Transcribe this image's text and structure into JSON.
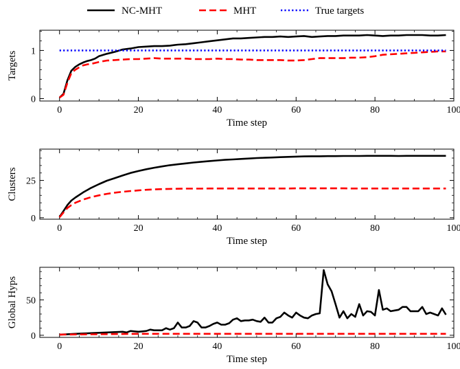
{
  "legend": [
    {
      "label": "NC-MHT",
      "color": "#000000",
      "dash": "solid"
    },
    {
      "label": "MHT",
      "color": "#ff0000",
      "dash": "dashed"
    },
    {
      "label": "True targets",
      "color": "#0000ff",
      "dash": "dotted"
    }
  ],
  "chart_data": [
    {
      "type": "line",
      "xlabel": "Time step",
      "ylabel": "Targets",
      "xlim": [
        -5,
        100
      ],
      "ylim": [
        -0.05,
        1.42
      ],
      "xticks": [
        0,
        20,
        40,
        60,
        80,
        100
      ],
      "yticks": [
        0,
        1
      ],
      "series": [
        {
          "name": "NC-MHT",
          "color": "#000000",
          "dash": "solid",
          "x": [
            0,
            1,
            2,
            3,
            4,
            5,
            6,
            7,
            8,
            9,
            10,
            12,
            14,
            16,
            18,
            20,
            22,
            24,
            26,
            28,
            30,
            32,
            34,
            36,
            38,
            40,
            42,
            44,
            46,
            48,
            50,
            52,
            54,
            56,
            58,
            60,
            62,
            64,
            66,
            68,
            70,
            72,
            74,
            76,
            78,
            80,
            82,
            84,
            86,
            88,
            90,
            92,
            94,
            96,
            98
          ],
          "y": [
            0.02,
            0.1,
            0.38,
            0.58,
            0.66,
            0.71,
            0.75,
            0.78,
            0.8,
            0.83,
            0.88,
            0.93,
            0.97,
            1.02,
            1.04,
            1.07,
            1.08,
            1.09,
            1.09,
            1.1,
            1.12,
            1.13,
            1.15,
            1.17,
            1.19,
            1.21,
            1.23,
            1.25,
            1.25,
            1.26,
            1.27,
            1.28,
            1.28,
            1.29,
            1.28,
            1.29,
            1.3,
            1.28,
            1.29,
            1.3,
            1.3,
            1.31,
            1.31,
            1.31,
            1.32,
            1.31,
            1.3,
            1.31,
            1.31,
            1.32,
            1.32,
            1.32,
            1.31,
            1.31,
            1.32
          ]
        },
        {
          "name": "MHT",
          "color": "#ff0000",
          "dash": "dashed",
          "x": [
            0,
            1,
            2,
            3,
            4,
            5,
            6,
            7,
            8,
            9,
            10,
            12,
            14,
            16,
            18,
            20,
            22,
            24,
            26,
            28,
            30,
            32,
            34,
            36,
            38,
            40,
            42,
            44,
            46,
            48,
            50,
            52,
            54,
            56,
            58,
            60,
            62,
            64,
            66,
            68,
            70,
            72,
            74,
            76,
            78,
            80,
            82,
            84,
            86,
            88,
            90,
            92,
            94,
            96,
            98
          ],
          "y": [
            0.02,
            0.08,
            0.33,
            0.53,
            0.6,
            0.65,
            0.69,
            0.71,
            0.72,
            0.74,
            0.76,
            0.79,
            0.8,
            0.81,
            0.82,
            0.82,
            0.83,
            0.84,
            0.83,
            0.83,
            0.83,
            0.83,
            0.82,
            0.82,
            0.82,
            0.83,
            0.82,
            0.82,
            0.81,
            0.81,
            0.8,
            0.8,
            0.8,
            0.8,
            0.79,
            0.79,
            0.8,
            0.82,
            0.84,
            0.84,
            0.84,
            0.84,
            0.85,
            0.85,
            0.86,
            0.88,
            0.91,
            0.92,
            0.93,
            0.94,
            0.95,
            0.96,
            0.97,
            0.98,
            0.98
          ]
        },
        {
          "name": "True targets",
          "color": "#0000ff",
          "dash": "dotted",
          "x": [
            0,
            98
          ],
          "y": [
            1,
            1
          ]
        }
      ]
    },
    {
      "type": "line",
      "xlabel": "Time step",
      "ylabel": "Clusters",
      "xlim": [
        -5,
        100
      ],
      "ylim": [
        -1,
        46
      ],
      "xticks": [
        0,
        20,
        40,
        60,
        80,
        100
      ],
      "yticks": [
        0,
        25
      ],
      "series": [
        {
          "name": "NC-MHT",
          "color": "#000000",
          "dash": "solid",
          "x": [
            0,
            1,
            2,
            3,
            4,
            6,
            8,
            10,
            12,
            14,
            16,
            18,
            20,
            22,
            24,
            26,
            28,
            30,
            32,
            34,
            36,
            38,
            40,
            42,
            44,
            46,
            48,
            50,
            52,
            54,
            56,
            58,
            60,
            62,
            64,
            66,
            68,
            70,
            72,
            74,
            76,
            78,
            80,
            82,
            84,
            86,
            88,
            90,
            92,
            94,
            96,
            98
          ],
          "y": [
            0.5,
            4.5,
            8.5,
            11.5,
            13.5,
            17,
            20,
            22.5,
            24.8,
            26.5,
            28.3,
            30,
            31.3,
            32.5,
            33.5,
            34.4,
            35.2,
            35.8,
            36.4,
            37,
            37.5,
            38,
            38.4,
            38.8,
            39.1,
            39.4,
            39.7,
            40,
            40.2,
            40.4,
            40.6,
            40.8,
            41,
            41.1,
            41.2,
            41.2,
            41.3,
            41.3,
            41.4,
            41.4,
            41.4,
            41.5,
            41.5,
            41.5,
            41.5,
            41.4,
            41.5,
            41.5,
            41.5,
            41.5,
            41.5,
            41.5
          ]
        },
        {
          "name": "MHT",
          "color": "#ff0000",
          "dash": "dashed",
          "x": [
            0,
            1,
            2,
            3,
            4,
            6,
            8,
            10,
            12,
            14,
            16,
            18,
            20,
            22,
            24,
            26,
            28,
            30,
            32,
            34,
            36,
            38,
            40,
            42,
            44,
            46,
            48,
            50,
            52,
            54,
            56,
            58,
            60,
            62,
            64,
            66,
            68,
            70,
            72,
            74,
            76,
            78,
            80,
            82,
            84,
            86,
            88,
            90,
            92,
            94,
            96,
            98
          ],
          "y": [
            0.3,
            3.5,
            6.5,
            8.5,
            10,
            12.2,
            13.8,
            15,
            16,
            16.8,
            17.4,
            17.9,
            18.3,
            18.7,
            19,
            19.2,
            19.3,
            19.4,
            19.5,
            19.5,
            19.5,
            19.6,
            19.6,
            19.6,
            19.6,
            19.6,
            19.6,
            19.6,
            19.6,
            19.6,
            19.6,
            19.6,
            19.7,
            19.7,
            19.7,
            19.7,
            19.7,
            19.7,
            19.7,
            19.6,
            19.6,
            19.6,
            19.6,
            19.6,
            19.6,
            19.6,
            19.6,
            19.6,
            19.6,
            19.6,
            19.6,
            19.6
          ]
        }
      ]
    },
    {
      "type": "line",
      "xlabel": "Time step",
      "ylabel": "Global Hyps",
      "xlim": [
        -5,
        100
      ],
      "ylim": [
        -3,
        96
      ],
      "xticks": [
        0,
        20,
        40,
        60,
        80,
        100
      ],
      "yticks": [
        0,
        50
      ],
      "series": [
        {
          "name": "NC-MHT",
          "color": "#000000",
          "dash": "solid",
          "x": [
            0,
            2,
            4,
            6,
            8,
            10,
            12,
            14,
            16,
            17,
            18,
            20,
            22,
            23,
            24,
            26,
            27,
            28,
            29,
            30,
            31,
            32,
            33,
            34,
            35,
            36,
            37,
            38,
            39,
            40,
            41,
            42,
            43,
            44,
            45,
            46,
            47,
            48,
            49,
            50,
            51,
            52,
            53,
            54,
            55,
            56,
            57,
            58,
            59,
            60,
            61,
            62,
            63,
            64,
            65,
            66,
            67,
            68,
            69,
            70,
            71,
            72,
            73,
            74,
            75,
            76,
            77,
            78,
            79,
            80,
            81,
            82,
            83,
            84,
            85,
            86,
            87,
            88,
            89,
            90,
            91,
            92,
            93,
            94,
            95,
            96,
            97,
            98
          ],
          "y": [
            1,
            1.5,
            2,
            2.5,
            3,
            3.5,
            4,
            4.5,
            5,
            4,
            6,
            5,
            6,
            8,
            7,
            7,
            10,
            8,
            10,
            18,
            11,
            11,
            13,
            20,
            18,
            11,
            11,
            13,
            16,
            18,
            15,
            15,
            17,
            22,
            24,
            20,
            21,
            21,
            22,
            20,
            19,
            25,
            18,
            18,
            24,
            26,
            32,
            28,
            25,
            32,
            28,
            25,
            24,
            28,
            30,
            31,
            92,
            72,
            62,
            44,
            25,
            34,
            24,
            30,
            26,
            44,
            28,
            34,
            33,
            28,
            64,
            36,
            38,
            34,
            35,
            36,
            40,
            40,
            34,
            34,
            34,
            40,
            30,
            32,
            30,
            28,
            38,
            29
          ]
        },
        {
          "name": "MHT",
          "color": "#ff0000",
          "dash": "dashed",
          "x": [
            0,
            10,
            20,
            30,
            40,
            50,
            60,
            70,
            80,
            90,
            98
          ],
          "y": [
            1,
            1.5,
            2,
            2,
            2,
            2,
            2,
            2,
            2,
            2,
            2
          ]
        }
      ]
    }
  ]
}
